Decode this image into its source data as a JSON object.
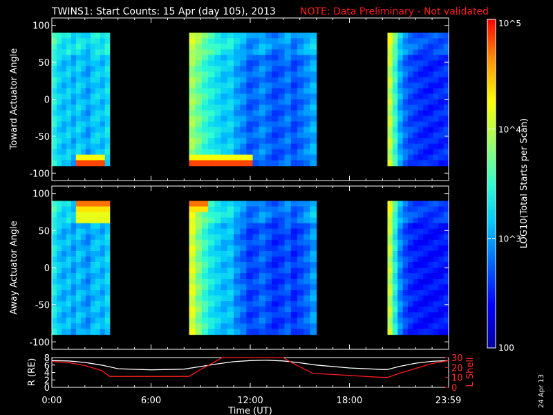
{
  "title": {
    "main": "TWINS1: Start Counts: 15 Apr (day 105), 2013",
    "note": "NOTE: Data Preliminary - Not validated"
  },
  "date_stamp": "24 Apr 13",
  "colorbar": {
    "label": "LOG10(Total Starts per Scan)",
    "ticks": [
      {
        "label": "100",
        "value": 100
      },
      {
        "label": "10^3",
        "value": 1000
      },
      {
        "label": "10^4",
        "value": 10000
      },
      {
        "label": "10^5",
        "value": 100000
      }
    ],
    "scale": "log",
    "range": [
      100,
      100000
    ],
    "colormap": [
      "#0000a0",
      "#0000ff",
      "#0060ff",
      "#00c8ff",
      "#30ffd0",
      "#a0ff60",
      "#ffff00",
      "#ff9000",
      "#ff0000"
    ]
  },
  "chart_data": [
    {
      "type": "heatmap",
      "name": "toward",
      "ylabel": "Toward Actuator Angle",
      "ylim": [
        -110,
        110
      ],
      "yticks": [
        -100,
        -50,
        0,
        50,
        100
      ],
      "xlim": [
        0,
        24
      ],
      "angle_range": [
        -90,
        90
      ],
      "segments": [
        {
          "start": 0.0,
          "end": 3.5,
          "level": 0.38,
          "xprofile": [
            0.46,
            0.4,
            0.36,
            0.4,
            0.34,
            0.4,
            0.36,
            0.32,
            0.38,
            0.4,
            0.36,
            0.42
          ],
          "hot_edge": "bottom",
          "hot_from": 1.5,
          "hot_to": 3.2
        },
        {
          "start": 8.3,
          "end": 16.0,
          "level": 0.35,
          "xprofile": [
            0.62,
            0.56,
            0.5,
            0.46,
            0.42,
            0.38,
            0.4,
            0.33,
            0.3,
            0.24,
            0.26,
            0.3,
            0.26,
            0.22,
            0.24,
            0.28,
            0.22,
            0.26,
            0.3,
            0.34
          ],
          "hot_edge": "bottom",
          "hot_from": 8.3,
          "hot_to": 12.0
        },
        {
          "start": 20.3,
          "end": 24.0,
          "level": 0.25,
          "xprofile": [
            0.66,
            0.5,
            0.34,
            0.26,
            0.22,
            0.2,
            0.18,
            0.17,
            0.16,
            0.18,
            0.17,
            0.19
          ],
          "hot_edge": "none"
        }
      ]
    },
    {
      "type": "heatmap",
      "name": "away",
      "ylabel": "Away Actuator Angle",
      "ylim": [
        -110,
        110
      ],
      "yticks": [
        -100,
        -50,
        0,
        50,
        100
      ],
      "xlim": [
        0,
        24
      ],
      "angle_range": [
        -90,
        90
      ],
      "segments": [
        {
          "start": 0.0,
          "end": 3.5,
          "level": 0.36,
          "xprofile": [
            0.44,
            0.38,
            0.34,
            0.38,
            0.32,
            0.38,
            0.34,
            0.3,
            0.36,
            0.38,
            0.34,
            0.4
          ],
          "hot_edge": "top",
          "hot_from": 1.5,
          "hot_to": 3.4
        },
        {
          "start": 8.3,
          "end": 16.0,
          "level": 0.3,
          "xprofile": [
            0.7,
            0.58,
            0.5,
            0.44,
            0.4,
            0.36,
            0.38,
            0.3,
            0.26,
            0.2,
            0.22,
            0.26,
            0.22,
            0.18,
            0.2,
            0.24,
            0.18,
            0.22,
            0.26,
            0.32
          ],
          "hot_edge": "top",
          "hot_from": 8.3,
          "hot_to": 9.4
        },
        {
          "start": 20.3,
          "end": 24.0,
          "level": 0.2,
          "xprofile": [
            0.66,
            0.46,
            0.3,
            0.22,
            0.18,
            0.16,
            0.15,
            0.14,
            0.14,
            0.15,
            0.14,
            0.16
          ],
          "hot_edge": "none"
        }
      ]
    },
    {
      "type": "line",
      "name": "orbit",
      "xlabel": "Time (UT)",
      "xlim": [
        0,
        24
      ],
      "xticks": [
        {
          "label": "0:00",
          "value": 0
        },
        {
          "label": "6:00",
          "value": 6
        },
        {
          "label": "12:00",
          "value": 12
        },
        {
          "label": "18:00",
          "value": 18
        },
        {
          "label": "23:59",
          "value": 23.98
        }
      ],
      "ylabel_left": "R (RE)",
      "ylim_left": [
        0,
        8
      ],
      "yticks_left": [
        0,
        2,
        4,
        6,
        8
      ],
      "ylabel_right": "L Shell",
      "ylim_right": [
        0,
        30
      ],
      "yticks_right": [
        0,
        10,
        20,
        30
      ],
      "series": [
        {
          "axis": "left",
          "color": "#ffffff",
          "x": [
            0,
            1,
            2,
            3,
            3.5,
            4,
            6,
            8,
            9,
            10,
            11,
            12,
            13,
            14,
            15,
            16,
            18,
            20,
            20.3,
            21,
            22,
            23,
            24
          ],
          "y": [
            7.2,
            7.1,
            6.7,
            6.0,
            5.5,
            5.0,
            4.7,
            4.9,
            5.6,
            6.3,
            6.9,
            7.2,
            7.3,
            7.1,
            6.6,
            6.0,
            5.2,
            4.8,
            4.8,
            5.6,
            6.5,
            7.0,
            7.2
          ]
        },
        {
          "axis": "right",
          "color": "#ff1a1a",
          "x": [
            0,
            1,
            2,
            3,
            3.5,
            5,
            8.3,
            9,
            10,
            10.3,
            14,
            14.5,
            15.8,
            17,
            20.0,
            20.3,
            21,
            22,
            23,
            24
          ],
          "y": [
            26,
            25,
            22,
            17,
            11,
            11,
            11,
            18,
            27,
            30,
            30,
            25,
            14,
            13,
            10,
            10,
            14,
            19,
            24,
            27
          ]
        }
      ]
    }
  ]
}
